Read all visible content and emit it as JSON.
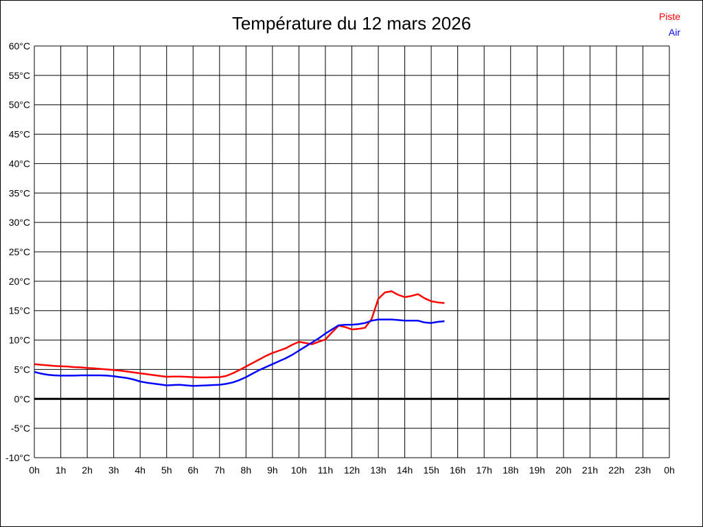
{
  "page": {
    "background": "#ffffff",
    "frame_border_color": "#000000"
  },
  "chart_data": {
    "type": "line",
    "title": "Température du 12 mars 2026",
    "grid": true,
    "legend_position": "top-right",
    "legend": [
      {
        "label": "Piste",
        "color": "#ff0000"
      },
      {
        "label": "Air",
        "color": "#0000ff"
      }
    ],
    "x_axis": {
      "min_hours": 0,
      "max_hours": 24,
      "tick_step_hours": 1,
      "tick_labels": [
        "0h",
        "1h",
        "2h",
        "3h",
        "4h",
        "5h",
        "6h",
        "7h",
        "8h",
        "9h",
        "10h",
        "11h",
        "12h",
        "13h",
        "14h",
        "15h",
        "16h",
        "17h",
        "18h",
        "19h",
        "20h",
        "21h",
        "22h",
        "23h",
        "0h"
      ]
    },
    "y_axis": {
      "min": -10,
      "max": 60,
      "grid_step": 5,
      "tick_values": [
        60,
        55,
        50,
        45,
        40,
        35,
        30,
        25,
        20,
        15,
        10,
        5,
        0,
        -5,
        -10
      ],
      "tick_labels": [
        "60°C",
        "55°C",
        "50°C",
        "45°C",
        "40°C",
        "35°C",
        "30°C",
        "25°C",
        "20°C",
        "15°C",
        "10°C",
        "5°C",
        "0°C",
        "-5°C",
        "-10°C"
      ],
      "zero_line_emphasized": true
    },
    "sample_step_hours": 0.25,
    "series": [
      {
        "name": "Piste",
        "color": "#ff0000",
        "start_hour": 0,
        "end_hour": 15.5,
        "values": [
          5.9,
          5.8,
          5.7,
          5.6,
          5.55,
          5.5,
          5.4,
          5.35,
          5.25,
          5.2,
          5.1,
          5.0,
          4.9,
          4.8,
          4.65,
          4.5,
          4.35,
          4.2,
          4.05,
          3.9,
          3.75,
          3.8,
          3.8,
          3.75,
          3.7,
          3.65,
          3.65,
          3.7,
          3.7,
          3.9,
          4.35,
          4.9,
          5.5,
          6.1,
          6.7,
          7.3,
          7.8,
          8.2,
          8.6,
          9.2,
          9.7,
          9.5,
          9.3,
          9.7,
          10.1,
          11.3,
          12.45,
          12.2,
          11.8,
          11.9,
          12.1,
          13.6,
          17.0,
          18.1,
          18.3,
          17.7,
          17.3,
          17.5,
          17.8,
          17.1,
          16.6,
          16.4,
          16.3
        ]
      },
      {
        "name": "Air",
        "color": "#0000ff",
        "start_hour": 0,
        "end_hour": 15.5,
        "values": [
          4.6,
          4.3,
          4.1,
          4.0,
          3.95,
          3.95,
          3.95,
          4.0,
          4.0,
          4.0,
          4.0,
          3.95,
          3.85,
          3.7,
          3.55,
          3.3,
          2.95,
          2.75,
          2.6,
          2.45,
          2.3,
          2.35,
          2.4,
          2.3,
          2.2,
          2.25,
          2.3,
          2.35,
          2.4,
          2.55,
          2.8,
          3.2,
          3.7,
          4.3,
          4.9,
          5.4,
          5.9,
          6.4,
          6.9,
          7.5,
          8.2,
          8.9,
          9.6,
          10.3,
          11.1,
          11.8,
          12.5,
          12.6,
          12.6,
          12.7,
          12.9,
          13.3,
          13.5,
          13.5,
          13.5,
          13.4,
          13.3,
          13.3,
          13.3,
          13.0,
          12.9,
          13.1,
          13.2
        ]
      }
    ]
  }
}
